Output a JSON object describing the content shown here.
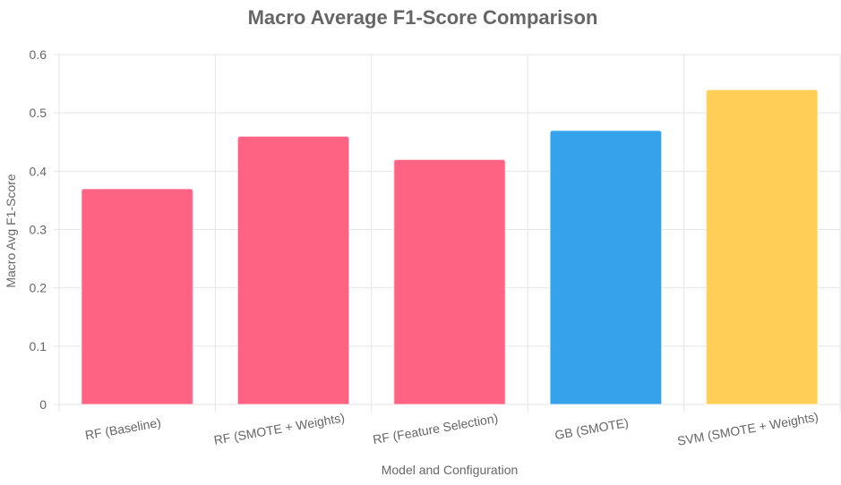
{
  "chart_data": {
    "type": "bar",
    "title": "Macro Average F1-Score Comparison",
    "xlabel": "Model and Configuration",
    "ylabel": "Macro Avg F1-Score",
    "categories": [
      "RF (Baseline)",
      "RF (SMOTE + Weights)",
      "RF (Feature Selection)",
      "GB (SMOTE)",
      "SVM (SMOTE + Weights)"
    ],
    "values": [
      0.37,
      0.46,
      0.42,
      0.47,
      0.54
    ],
    "colors": [
      "#ff6384",
      "#ff6384",
      "#ff6384",
      "#36a2eb",
      "#ffce56"
    ],
    "ylim": [
      0,
      0.6
    ],
    "yticks": [
      "0",
      "0.1",
      "0.2",
      "0.3",
      "0.4",
      "0.5",
      "0.6"
    ],
    "grid": true,
    "legend": "none"
  }
}
